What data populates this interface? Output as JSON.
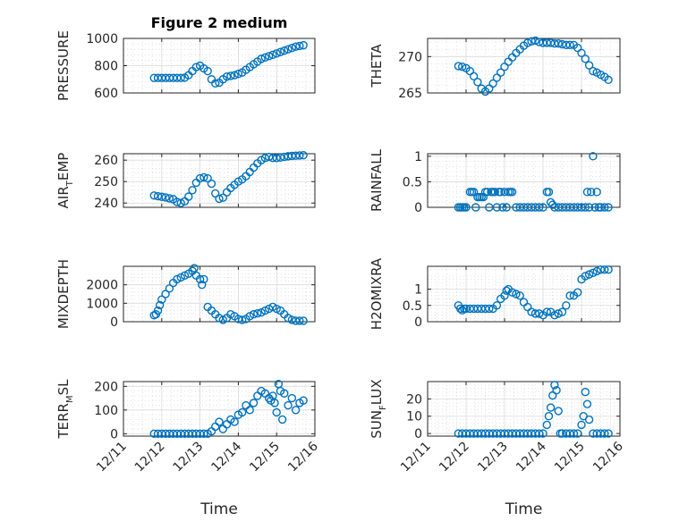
{
  "figure": {
    "title": "Figure 2 medium",
    "xlabel": "Time",
    "marker_color": "#0072BD",
    "x_tick_labels": [
      "12/11",
      "12/12",
      "12/13",
      "12/14",
      "12/15",
      "12/16"
    ]
  },
  "chart_data": [
    {
      "id": "pressure",
      "type": "scatter",
      "title": "Figure 2 medium",
      "ylabel": "PRESSURE",
      "xlim": [
        0,
        5
      ],
      "ylim": [
        600,
        1000
      ],
      "yticks": [
        600,
        800,
        1000
      ],
      "x_tick_labels": [
        "",
        "",
        "",
        "",
        "",
        ""
      ],
      "xlabel": "",
      "grid": true,
      "marker": "circle-open",
      "x": [
        0.8,
        0.9,
        1.0,
        1.1,
        1.2,
        1.3,
        1.4,
        1.5,
        1.6,
        1.7,
        1.8,
        1.9,
        2.0,
        2.1,
        2.2,
        2.3,
        2.4,
        2.5,
        2.6,
        2.7,
        2.8,
        2.9,
        3.0,
        3.1,
        3.2,
        3.3,
        3.4,
        3.5,
        3.6,
        3.7,
        3.8,
        3.9,
        4.0,
        4.1,
        4.2,
        4.3,
        4.4,
        4.5,
        4.6,
        4.7
      ],
      "y": [
        710,
        710,
        710,
        710,
        710,
        710,
        710,
        710,
        712,
        730,
        760,
        790,
        800,
        780,
        760,
        700,
        670,
        675,
        700,
        720,
        725,
        730,
        740,
        750,
        770,
        790,
        810,
        830,
        850,
        860,
        870,
        880,
        890,
        900,
        910,
        920,
        930,
        940,
        945,
        950
      ]
    },
    {
      "id": "theta",
      "type": "scatter",
      "title": "",
      "ylabel": "THETA",
      "xlim": [
        0,
        5
      ],
      "ylim": [
        265,
        272.5
      ],
      "yticks": [
        265,
        270
      ],
      "x_tick_labels": [
        "",
        "",
        "",
        "",
        "",
        ""
      ],
      "xlabel": "",
      "grid": true,
      "marker": "circle-open",
      "x": [
        0.8,
        0.9,
        1.0,
        1.1,
        1.2,
        1.3,
        1.4,
        1.5,
        1.6,
        1.7,
        1.8,
        1.9,
        2.0,
        2.1,
        2.2,
        2.3,
        2.4,
        2.5,
        2.6,
        2.7,
        2.8,
        2.9,
        3.0,
        3.1,
        3.2,
        3.3,
        3.4,
        3.5,
        3.6,
        3.7,
        3.8,
        3.9,
        4.0,
        4.1,
        4.2,
        4.3,
        4.4,
        4.5,
        4.6,
        4.7
      ],
      "y": [
        268.7,
        268.6,
        268.4,
        268.0,
        267.3,
        266.5,
        265.6,
        265.2,
        265.6,
        266.3,
        267.1,
        267.8,
        268.6,
        269.3,
        269.9,
        270.5,
        271.0,
        271.5,
        271.9,
        272.1,
        272.2,
        272.0,
        271.9,
        271.9,
        271.9,
        271.8,
        271.8,
        271.7,
        271.6,
        271.6,
        271.6,
        271.2,
        270.5,
        269.7,
        268.8,
        268.0,
        267.8,
        267.5,
        267.2,
        266.8
      ]
    },
    {
      "id": "air_temp",
      "type": "scatter",
      "title": "",
      "ylabel": "AIR_TEMP",
      "ylabel_main": "AIR",
      "ylabel_sub": "T",
      "ylabel_rest": "EMP",
      "xlim": [
        0,
        5
      ],
      "ylim": [
        238,
        263
      ],
      "yticks": [
        240,
        250,
        260
      ],
      "x_tick_labels": [
        "",
        "",
        "",
        "",
        "",
        ""
      ],
      "xlabel": "",
      "grid": true,
      "marker": "circle-open",
      "x": [
        0.8,
        0.9,
        1.0,
        1.1,
        1.2,
        1.3,
        1.4,
        1.5,
        1.6,
        1.7,
        1.8,
        1.9,
        2.0,
        2.1,
        2.2,
        2.3,
        2.4,
        2.5,
        2.6,
        2.7,
        2.8,
        2.9,
        3.0,
        3.1,
        3.2,
        3.3,
        3.4,
        3.5,
        3.6,
        3.7,
        3.8,
        3.9,
        4.0,
        4.1,
        4.2,
        4.3,
        4.4,
        4.5,
        4.6,
        4.7
      ],
      "y": [
        243.5,
        243.2,
        242.9,
        242.6,
        242.2,
        241.8,
        240.5,
        240.0,
        240.8,
        243.0,
        246.0,
        249.5,
        251.5,
        252.0,
        251.5,
        249.0,
        244.5,
        242.0,
        242.5,
        245.0,
        247.0,
        248.5,
        250.0,
        251.0,
        252.5,
        254.5,
        256.5,
        258.5,
        260.0,
        261.0,
        261.5,
        261.0,
        261.0,
        261.2,
        261.5,
        261.8,
        262.0,
        262.1,
        262.2,
        262.3
      ]
    },
    {
      "id": "rainfall",
      "type": "scatter",
      "title": "",
      "ylabel": "RAINFALL",
      "xlim": [
        0,
        5
      ],
      "ylim": [
        0,
        1.05
      ],
      "yticks": [
        0,
        0.5,
        1
      ],
      "x_tick_labels": [
        "",
        "",
        "",
        "",
        "",
        ""
      ],
      "xlabel": "",
      "grid": true,
      "marker": "circle-open",
      "x": [
        0.8,
        0.85,
        0.9,
        0.95,
        1.0,
        1.1,
        1.15,
        1.2,
        1.25,
        1.3,
        1.35,
        1.4,
        1.45,
        1.5,
        1.55,
        1.6,
        1.65,
        1.7,
        1.75,
        1.8,
        1.85,
        1.9,
        1.95,
        2.0,
        2.05,
        2.1,
        2.15,
        2.2,
        2.3,
        2.4,
        2.5,
        2.6,
        2.7,
        2.8,
        2.9,
        3.0,
        3.1,
        3.15,
        3.2,
        3.25,
        3.3,
        3.4,
        3.5,
        3.6,
        3.7,
        3.8,
        3.9,
        4.0,
        4.1,
        4.15,
        4.2,
        4.25,
        4.3,
        4.35,
        4.4,
        4.45,
        4.5,
        4.6,
        4.7
      ],
      "y": [
        0,
        0,
        0,
        0,
        0,
        0.3,
        0.3,
        0.3,
        0,
        0.2,
        0.2,
        0.2,
        0.2,
        0.3,
        0.3,
        0,
        0.3,
        0.3,
        0.3,
        0,
        0.3,
        0.3,
        0,
        0.3,
        0,
        0.3,
        0.3,
        0.3,
        0,
        0,
        0,
        0,
        0,
        0,
        0,
        0,
        0.3,
        0.3,
        0.1,
        0.05,
        0,
        0,
        0,
        0,
        0,
        0,
        0,
        0,
        0,
        0.3,
        0,
        0.3,
        1.0,
        0,
        0.3,
        0,
        0,
        0,
        0
      ]
    },
    {
      "id": "mixdepth",
      "type": "scatter",
      "title": "",
      "ylabel": "MIXDEPTH",
      "xlim": [
        0,
        5
      ],
      "ylim": [
        0,
        3000
      ],
      "yticks": [
        0,
        1000,
        2000
      ],
      "x_tick_labels": [
        "",
        "",
        "",
        "",
        "",
        ""
      ],
      "xlabel": "",
      "grid": true,
      "marker": "circle-open",
      "x": [
        0.8,
        0.85,
        0.9,
        0.95,
        1.0,
        1.1,
        1.2,
        1.3,
        1.4,
        1.5,
        1.6,
        1.7,
        1.8,
        1.85,
        1.9,
        2.0,
        2.05,
        2.1,
        2.2,
        2.3,
        2.4,
        2.5,
        2.6,
        2.7,
        2.8,
        2.9,
        3.0,
        3.1,
        3.2,
        3.3,
        3.4,
        3.5,
        3.6,
        3.7,
        3.8,
        3.9,
        4.0,
        4.1,
        4.2,
        4.3,
        4.4,
        4.5,
        4.6,
        4.7
      ],
      "y": [
        350,
        400,
        600,
        900,
        1200,
        1500,
        1800,
        2100,
        2300,
        2400,
        2500,
        2600,
        2750,
        2900,
        2500,
        2300,
        2000,
        2300,
        800,
        600,
        400,
        200,
        100,
        200,
        400,
        300,
        150,
        100,
        150,
        300,
        400,
        450,
        500,
        600,
        700,
        800,
        700,
        600,
        400,
        200,
        100,
        50,
        50,
        50
      ]
    },
    {
      "id": "h2omixra",
      "type": "scatter",
      "title": "",
      "ylabel": "H2OMIXRA",
      "xlim": [
        0,
        5
      ],
      "ylim": [
        0,
        1.7
      ],
      "yticks": [
        0,
        0.5,
        1
      ],
      "x_tick_labels": [
        "",
        "",
        "",
        "",
        "",
        ""
      ],
      "xlabel": "",
      "grid": true,
      "marker": "circle-open",
      "x": [
        0.8,
        0.85,
        0.9,
        0.95,
        1.0,
        1.1,
        1.2,
        1.3,
        1.4,
        1.5,
        1.6,
        1.7,
        1.8,
        1.9,
        2.0,
        2.05,
        2.1,
        2.2,
        2.3,
        2.4,
        2.5,
        2.6,
        2.7,
        2.8,
        2.9,
        3.0,
        3.1,
        3.2,
        3.3,
        3.4,
        3.5,
        3.6,
        3.7,
        3.8,
        3.9,
        4.0,
        4.1,
        4.2,
        4.3,
        4.4,
        4.5,
        4.6,
        4.7
      ],
      "y": [
        0.5,
        0.4,
        0.35,
        0.4,
        0.4,
        0.4,
        0.4,
        0.4,
        0.4,
        0.4,
        0.4,
        0.4,
        0.5,
        0.7,
        0.8,
        0.95,
        1.0,
        0.9,
        0.85,
        0.8,
        0.6,
        0.45,
        0.3,
        0.25,
        0.25,
        0.2,
        0.3,
        0.3,
        0.2,
        0.25,
        0.3,
        0.5,
        0.8,
        0.8,
        0.9,
        1.3,
        1.4,
        1.45,
        1.5,
        1.55,
        1.6,
        1.6,
        1.6
      ]
    },
    {
      "id": "terr_msl",
      "type": "scatter",
      "title": "",
      "ylabel": "TERR_MSL",
      "ylabel_main": "TERR",
      "ylabel_sub": "M",
      "ylabel_rest": "SL",
      "xlim": [
        0,
        5
      ],
      "ylim": [
        -10,
        220
      ],
      "yticks": [
        0,
        100,
        200
      ],
      "x_tick_labels": [
        "12/11",
        "12/12",
        "12/13",
        "12/14",
        "12/15",
        "12/16"
      ],
      "xlabel": "Time",
      "grid": true,
      "marker": "circle-open",
      "x": [
        0.8,
        0.9,
        1.0,
        1.1,
        1.2,
        1.3,
        1.4,
        1.5,
        1.6,
        1.7,
        1.8,
        1.9,
        2.0,
        2.1,
        2.2,
        2.3,
        2.4,
        2.5,
        2.6,
        2.7,
        2.8,
        2.9,
        3.0,
        3.1,
        3.2,
        3.3,
        3.4,
        3.5,
        3.6,
        3.7,
        3.8,
        3.85,
        3.9,
        3.95,
        4.0,
        4.05,
        4.1,
        4.15,
        4.2,
        4.3,
        4.4,
        4.5,
        4.6,
        4.7
      ],
      "y": [
        0,
        0,
        0,
        0,
        0,
        0,
        0,
        0,
        0,
        0,
        0,
        0,
        0,
        0,
        0,
        10,
        30,
        50,
        20,
        40,
        60,
        50,
        80,
        90,
        120,
        100,
        130,
        160,
        180,
        170,
        150,
        140,
        160,
        130,
        90,
        210,
        180,
        60,
        170,
        120,
        150,
        100,
        130,
        140
      ]
    },
    {
      "id": "sun_flux",
      "type": "scatter",
      "title": "",
      "ylabel": "SUN_FLUX",
      "ylabel_main": "SUN",
      "ylabel_sub": "F",
      "ylabel_rest": "LUX",
      "xlim": [
        0,
        5
      ],
      "ylim": [
        -1.5,
        30
      ],
      "yticks": [
        0,
        10,
        20
      ],
      "x_tick_labels": [
        "12/11",
        "12/12",
        "12/13",
        "12/14",
        "12/15",
        "12/16"
      ],
      "xlabel": "Time",
      "grid": true,
      "marker": "circle-open",
      "x": [
        0.8,
        0.9,
        1.0,
        1.1,
        1.2,
        1.3,
        1.4,
        1.5,
        1.6,
        1.7,
        1.8,
        1.9,
        2.0,
        2.1,
        2.2,
        2.3,
        2.4,
        2.5,
        2.6,
        2.7,
        2.8,
        2.9,
        3.0,
        3.1,
        3.15,
        3.2,
        3.25,
        3.3,
        3.35,
        3.4,
        3.45,
        3.5,
        3.6,
        3.7,
        3.8,
        3.9,
        4.0,
        4.05,
        4.1,
        4.15,
        4.2,
        4.3,
        4.4,
        4.5,
        4.6,
        4.7
      ],
      "y": [
        0,
        0,
        0,
        0,
        0,
        0,
        0,
        0,
        0,
        0,
        0,
        0,
        0,
        0,
        0,
        0,
        0,
        0,
        0,
        0,
        0,
        0,
        0,
        5,
        10,
        15,
        22,
        28,
        25,
        13,
        0,
        0,
        0,
        0,
        0,
        0,
        5,
        10,
        24,
        17,
        8,
        0,
        0,
        0,
        0,
        0
      ]
    }
  ]
}
